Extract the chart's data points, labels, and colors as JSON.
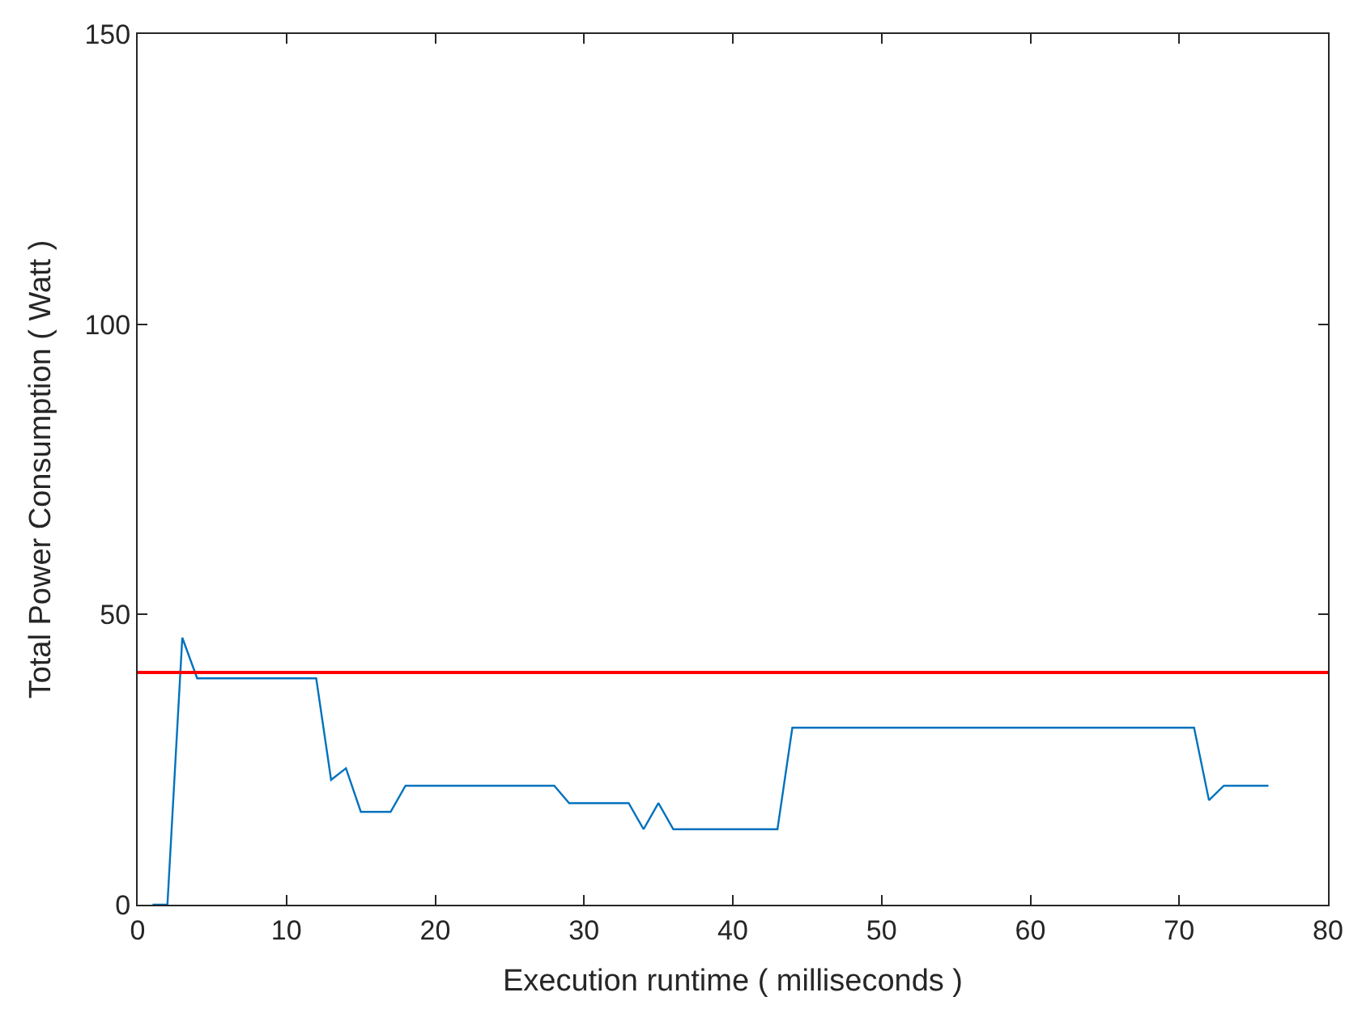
{
  "chart_data": {
    "type": "line",
    "xlabel": "Execution runtime ( milliseconds )",
    "ylabel": "Total Power Consumption ( Watt )",
    "x": [
      1,
      2,
      3,
      4,
      8,
      12,
      13,
      14,
      15,
      17,
      18,
      28,
      29,
      33,
      34,
      35,
      36,
      43,
      44,
      71,
      72,
      73,
      76
    ],
    "series": [
      {
        "color": "#0072bd",
        "values": [
          0,
          0,
          46,
          39,
          39,
          39,
          21.5,
          23.5,
          16,
          16,
          20.5,
          20.5,
          17.5,
          17.5,
          13,
          17.5,
          13,
          13,
          30.5,
          30.5,
          18,
          20.5,
          20.5
        ]
      }
    ],
    "ref_lines": [
      {
        "axis": "y",
        "value": 40,
        "color": "#ff0000"
      }
    ],
    "xlim": [
      0,
      80
    ],
    "xticks": [
      0,
      10,
      20,
      30,
      40,
      50,
      60,
      70,
      80
    ],
    "ylim": [
      0,
      150
    ],
    "yticks": [
      0,
      50,
      100,
      150
    ],
    "grid": false
  }
}
